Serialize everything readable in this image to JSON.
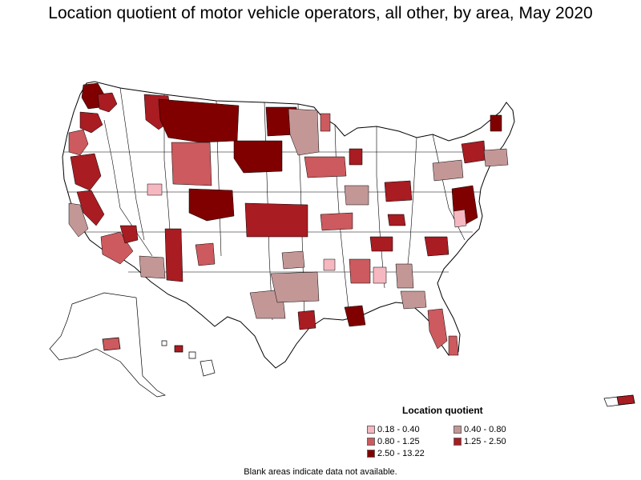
{
  "title": "Location quotient of motor vehicle operators, all other, by area, May 2020",
  "legend": {
    "title": "Location quotient",
    "items": [
      {
        "label": "0.18 - 0.40",
        "color": "#f5b7c0"
      },
      {
        "label": "0.40 - 0.80",
        "color": "#c49797"
      },
      {
        "label": "0.80 - 1.25",
        "color": "#cc5a5e"
      },
      {
        "label": "1.25 - 2.50",
        "color": "#a81c22"
      },
      {
        "label": "2.50 - 13.22",
        "color": "#800000"
      }
    ]
  },
  "note": "Blank areas indicate data not available.",
  "colors": {
    "outline": "#000000",
    "no_data": "#ffffff"
  }
}
